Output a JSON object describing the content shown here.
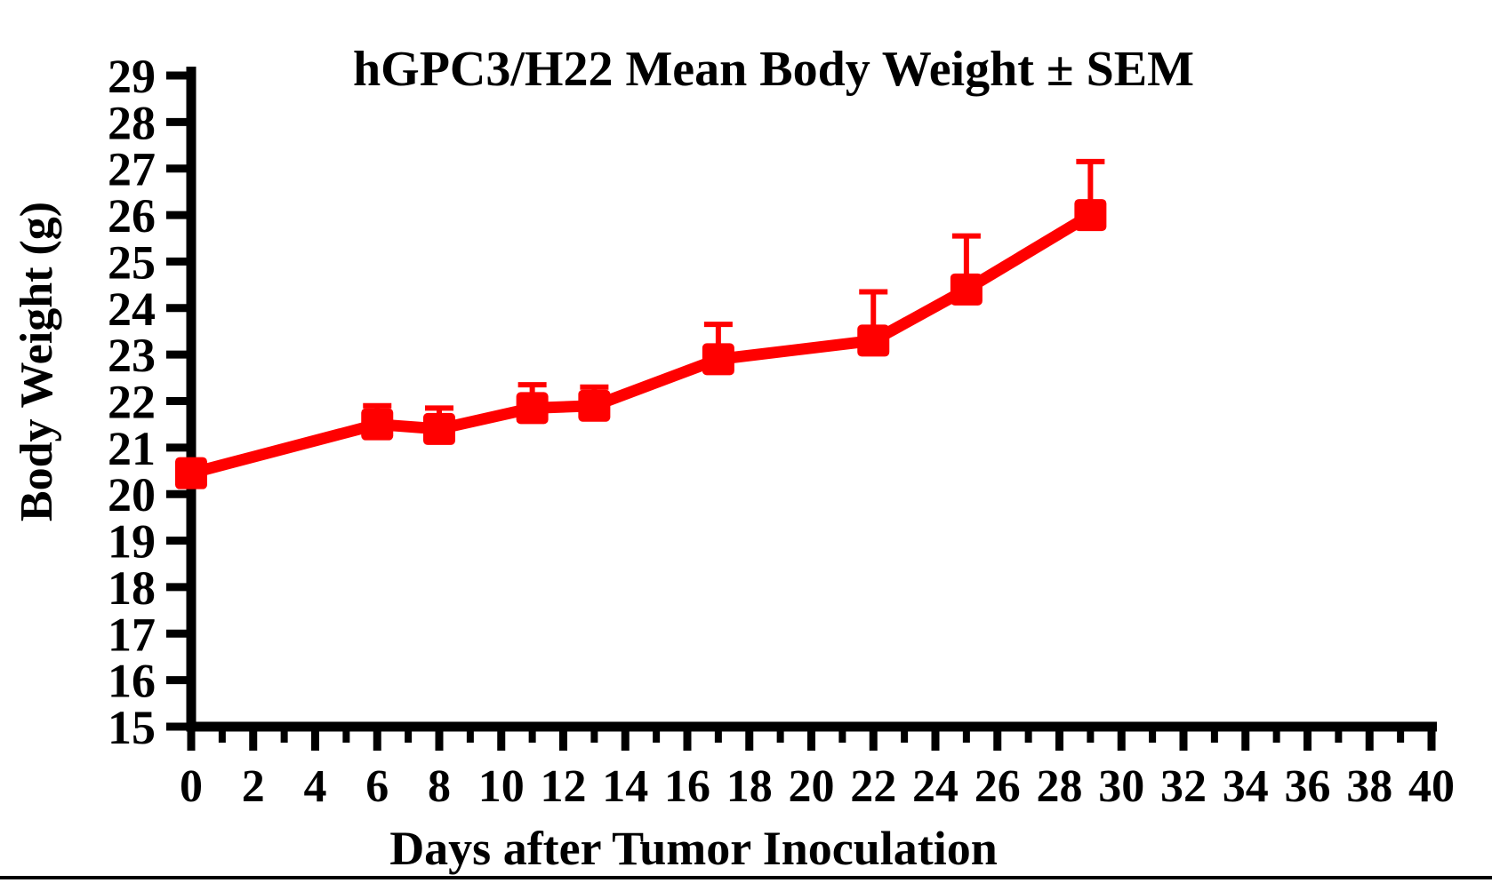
{
  "page": {
    "background_color": "#ffffff",
    "bottom_rule_color": "#000000"
  },
  "chart_data": {
    "type": "line",
    "title": "hGPC3/H22 Mean Body Weight ± SEM",
    "xlabel": "Days after Tumor Inoculation",
    "ylabel": "Body Weight (g)",
    "xlim": [
      0,
      40
    ],
    "ylim": [
      15,
      29
    ],
    "grid": false,
    "legend": "none",
    "axis_color": "#000000",
    "x_major_ticks": [
      0,
      2,
      4,
      6,
      8,
      10,
      12,
      14,
      16,
      18,
      20,
      22,
      24,
      26,
      28,
      30,
      32,
      34,
      36,
      38,
      40
    ],
    "x_minor_ticks": [
      1,
      3,
      5,
      7,
      9,
      11,
      13,
      15,
      17,
      19,
      21,
      23,
      25,
      27,
      29,
      31,
      33,
      35,
      37,
      39
    ],
    "y_ticks": [
      15,
      16,
      17,
      18,
      19,
      20,
      21,
      22,
      23,
      24,
      25,
      26,
      27,
      28,
      29
    ],
    "series": [
      {
        "name": "hGPC3/H22 mean body weight",
        "color": "#ff0000",
        "marker": "square",
        "error_bars": "upper SEM only",
        "points": [
          {
            "x": 0,
            "y": 20.45,
            "sem": 0
          },
          {
            "x": 6,
            "y": 21.5,
            "sem": 0.4
          },
          {
            "x": 8,
            "y": 21.4,
            "sem": 0.45
          },
          {
            "x": 11,
            "y": 21.85,
            "sem": 0.5
          },
          {
            "x": 13,
            "y": 21.9,
            "sem": 0.4
          },
          {
            "x": 17,
            "y": 22.9,
            "sem": 0.75
          },
          {
            "x": 22,
            "y": 23.3,
            "sem": 1.05
          },
          {
            "x": 25,
            "y": 24.4,
            "sem": 1.15
          },
          {
            "x": 29,
            "y": 26.0,
            "sem": 1.15
          }
        ]
      }
    ]
  }
}
